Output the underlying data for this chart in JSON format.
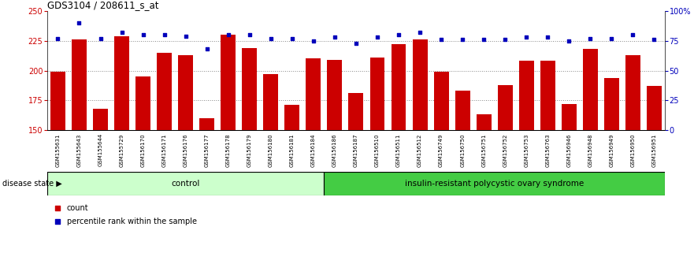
{
  "title": "GDS3104 / 208611_s_at",
  "samples": [
    "GSM155631",
    "GSM155643",
    "GSM155644",
    "GSM155729",
    "GSM156170",
    "GSM156171",
    "GSM156176",
    "GSM156177",
    "GSM156178",
    "GSM156179",
    "GSM156180",
    "GSM156181",
    "GSM156184",
    "GSM156186",
    "GSM156187",
    "GSM156510",
    "GSM156511",
    "GSM156512",
    "GSM156749",
    "GSM156750",
    "GSM156751",
    "GSM156752",
    "GSM156753",
    "GSM156763",
    "GSM156946",
    "GSM156948",
    "GSM156949",
    "GSM156950",
    "GSM156951"
  ],
  "counts": [
    199,
    226,
    168,
    229,
    195,
    215,
    213,
    160,
    230,
    219,
    197,
    171,
    210,
    209,
    181,
    211,
    222,
    226,
    199,
    183,
    163,
    188,
    208,
    208,
    172,
    218,
    194,
    213,
    187
  ],
  "percentile_ranks": [
    77,
    90,
    77,
    82,
    80,
    80,
    79,
    68,
    80,
    80,
    77,
    77,
    75,
    78,
    73,
    78,
    80,
    82,
    76,
    76,
    76,
    76,
    78,
    78,
    75,
    77,
    77,
    80,
    76
  ],
  "control_count": 13,
  "ylim_left": [
    150,
    250
  ],
  "ylim_right": [
    0,
    100
  ],
  "yticks_left": [
    150,
    175,
    200,
    225,
    250
  ],
  "yticks_right": [
    0,
    25,
    50,
    75,
    100
  ],
  "ytick_right_labels": [
    "0",
    "25",
    "50",
    "75",
    "100%"
  ],
  "bar_color": "#cc0000",
  "dot_color": "#0000bb",
  "control_color": "#ccffcc",
  "disease_color": "#44cc44",
  "bg_color": "#cccccc",
  "grid_color": "#888888",
  "control_label": "control",
  "disease_label": "insulin-resistant polycystic ovary syndrome",
  "legend_count": "count",
  "legend_pct": "percentile rank within the sample",
  "disease_state_label": "disease state"
}
